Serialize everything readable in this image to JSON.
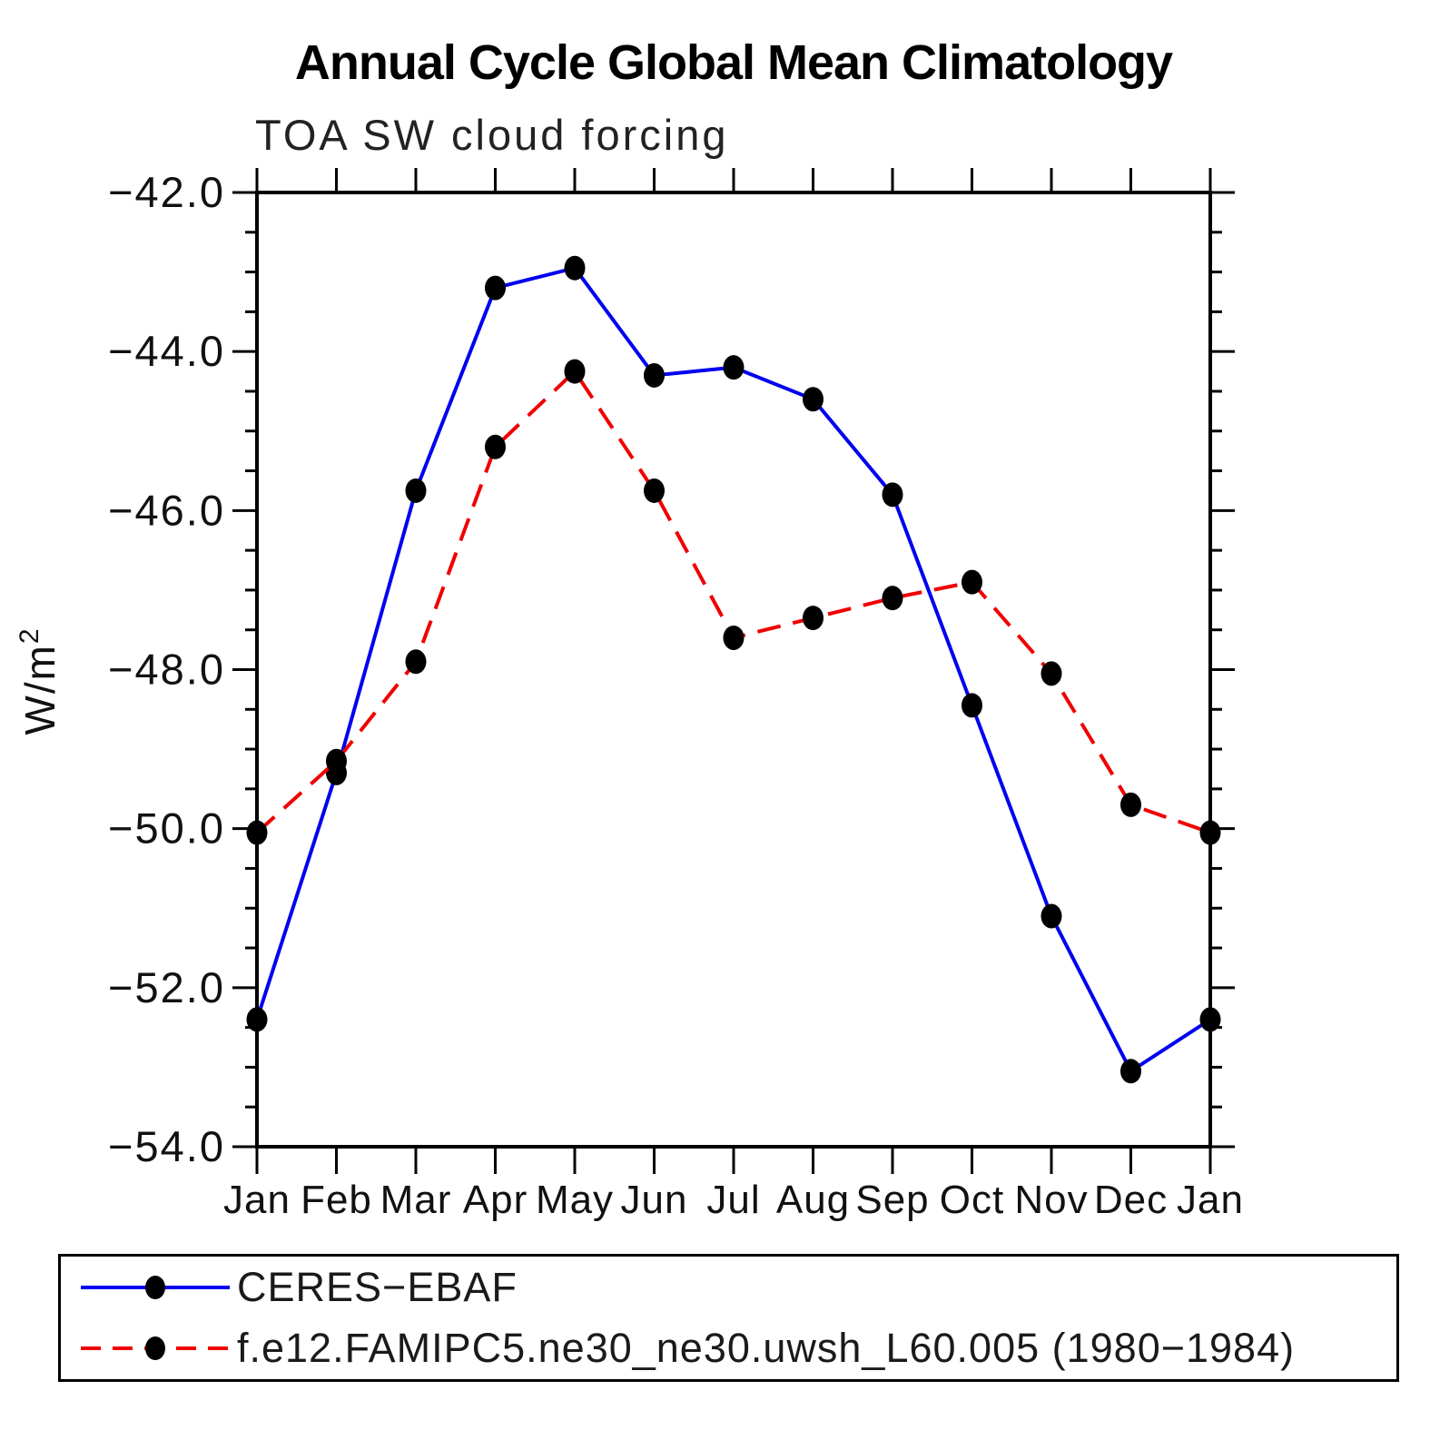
{
  "title": "Annual Cycle Global Mean Climatology",
  "subtitle": "TOA SW cloud forcing",
  "chart_data": {
    "type": "line",
    "title": "Annual Cycle Global Mean Climatology",
    "subtitle": "TOA SW cloud forcing",
    "xlabel": "",
    "ylabel": "W/m²",
    "x_categories": [
      "Jan",
      "Feb",
      "Mar",
      "Apr",
      "May",
      "Jun",
      "Jul",
      "Aug",
      "Sep",
      "Oct",
      "Nov",
      "Dec",
      "Jan"
    ],
    "ylim": [
      -54.0,
      -42.0
    ],
    "y_major_step": 2.0,
    "y_minor_step": 0.5,
    "y_tick_labels": [
      "−42.0",
      "−44.0",
      "−46.0",
      "−48.0",
      "−50.0",
      "−52.0",
      "−54.0"
    ],
    "grid": false,
    "legend_position": "bottom-box",
    "axis_color": "#000000",
    "marker": "filled-circle",
    "marker_color": "#000000",
    "series": [
      {
        "name": "CERES−EBAF",
        "color": "#0000f0",
        "line_style": "solid",
        "values": [
          -52.4,
          -49.3,
          -45.75,
          -43.2,
          -42.95,
          -44.3,
          -44.2,
          -44.6,
          -45.8,
          -48.45,
          -51.1,
          -53.05,
          -52.4
        ]
      },
      {
        "name": "f.e12.FAMIPC5.ne30_ne30.uwsh_L60.005 (1980−1984)",
        "color": "#f00000",
        "line_style": "dashed",
        "values": [
          -50.05,
          -49.15,
          -47.9,
          -45.2,
          -44.25,
          -45.75,
          -47.6,
          -47.35,
          -47.1,
          -46.9,
          -48.05,
          -49.7,
          -50.05
        ]
      }
    ]
  }
}
